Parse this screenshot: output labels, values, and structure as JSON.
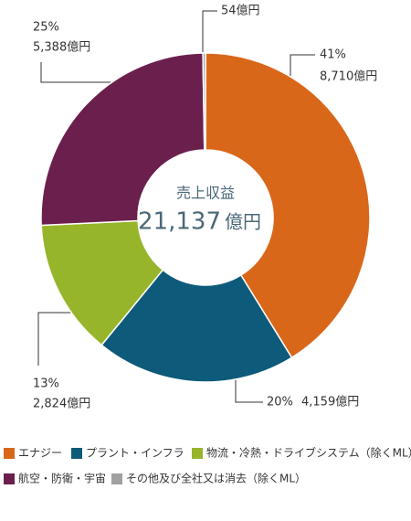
{
  "chart_data": {
    "type": "donut",
    "center_title": "売上収益",
    "center_value": {
      "value": 21137,
      "label": "21,137"
    },
    "center_unit": "億円",
    "series": [
      {
        "name": "エナジー",
        "color": "#d9671a",
        "value": 8710,
        "value_label": "8,710億円",
        "percent_label": "41%"
      },
      {
        "name": "プラント・インフラ",
        "color": "#0e5a7a",
        "value": 4159,
        "value_label": "4,159億円",
        "percent_label": "20%"
      },
      {
        "name": "物流・冷熱・ドライブシステム（除くML）",
        "color": "#97b52a",
        "value": 2824,
        "value_label": "2,824億円",
        "percent_label": "13%"
      },
      {
        "name": "航空・防衛・宇宙",
        "color": "#6b1f4d",
        "value": 5388,
        "value_label": "5,388億円",
        "percent_label": "25%"
      },
      {
        "name": "その他及び全社又は消去（除くML）",
        "color": "#a0a0a0",
        "value": 54,
        "value_label": "54億円"
      }
    ]
  }
}
